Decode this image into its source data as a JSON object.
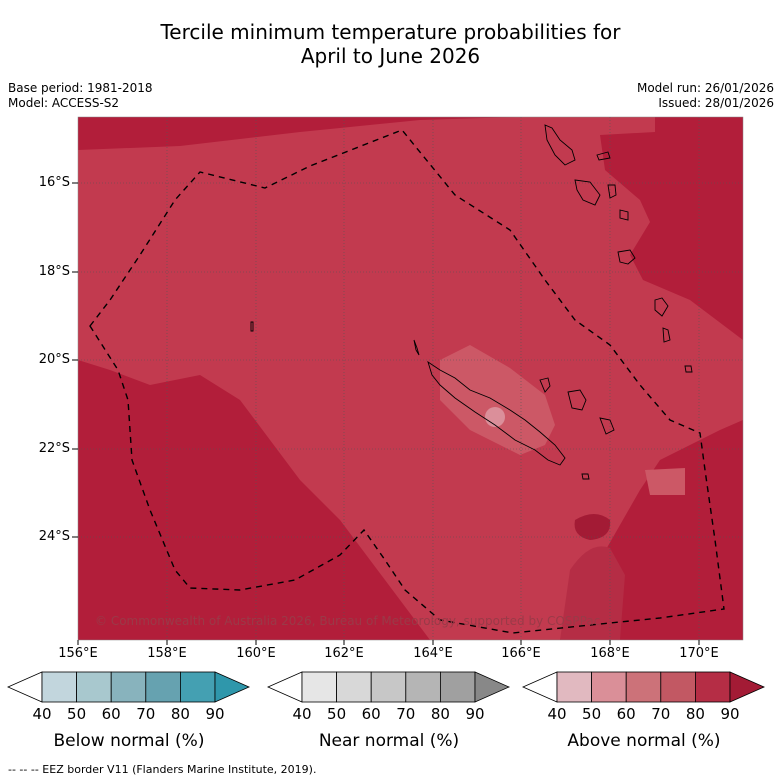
{
  "title": {
    "line1": "Tercile minimum temperature probabilities for",
    "line2": "April to June 2026"
  },
  "meta": {
    "base_period": "Base period: 1981-2018",
    "model": "Model: ACCESS-S2",
    "model_run": "Model run: 26/01/2026",
    "issued": "Issued: 28/01/2026"
  },
  "map": {
    "lat_labels": [
      "16°S",
      "18°S",
      "20°S",
      "22°S",
      "24°S"
    ],
    "lon_labels": [
      "156°E",
      "158°E",
      "160°E",
      "162°E",
      "164°E",
      "166°E",
      "168°E",
      "170°E"
    ],
    "copyright": "© Commonwealth of Australia 2026, Bureau of Meteorology, supported by COSPPac",
    "colors": {
      "above_80_90": "#b21e3a",
      "above_70_80": "#c23a4f",
      "above_60_70": "#cc5866",
      "above_50_60": "#db8f9a",
      "border": "#000000"
    }
  },
  "colorbars": {
    "ticks": [
      "40",
      "50",
      "60",
      "70",
      "80",
      "90"
    ],
    "below": {
      "label": "Below normal (%)",
      "colors": [
        "#ffffff",
        "#c2d6dd",
        "#a8c8ce",
        "#88b3bd",
        "#66a2b0",
        "#44a0b2",
        "#2f97ab"
      ]
    },
    "near": {
      "label": "Near normal (%)",
      "colors": [
        "#ffffff",
        "#e6e6e6",
        "#d8d8d8",
        "#c7c7c7",
        "#b5b5b5",
        "#a0a0a0",
        "#888888"
      ]
    },
    "above": {
      "label": "Above normal (%)",
      "colors": [
        "#ffffff",
        "#e1b9c0",
        "#da8f98",
        "#cc7279",
        "#c25863",
        "#b52d45",
        "#a31b35"
      ]
    }
  },
  "footer": "--  --  -- EEZ border V11 (Flanders Marine Institute, 2019)."
}
